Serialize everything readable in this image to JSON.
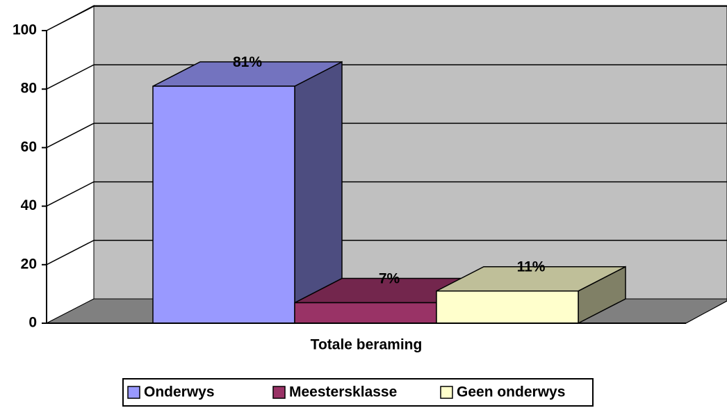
{
  "chart_data": {
    "type": "bar3d",
    "categories": [
      "Totale beraming"
    ],
    "series": [
      {
        "name": "Onderwys",
        "color": "#9999ff",
        "values": [
          81
        ],
        "value_labels": [
          "81%"
        ]
      },
      {
        "name": "Meestersklasse",
        "color": "#993366",
        "values": [
          7
        ],
        "value_labels": [
          "7%"
        ]
      },
      {
        "name": "Geen onderwys",
        "color": "#ffffcc",
        "values": [
          11
        ],
        "value_labels": [
          "11%"
        ]
      }
    ],
    "ylim": [
      0,
      100
    ],
    "yticks": [
      0,
      20,
      40,
      60,
      80,
      100
    ],
    "grid": true,
    "legend": "bottom"
  }
}
